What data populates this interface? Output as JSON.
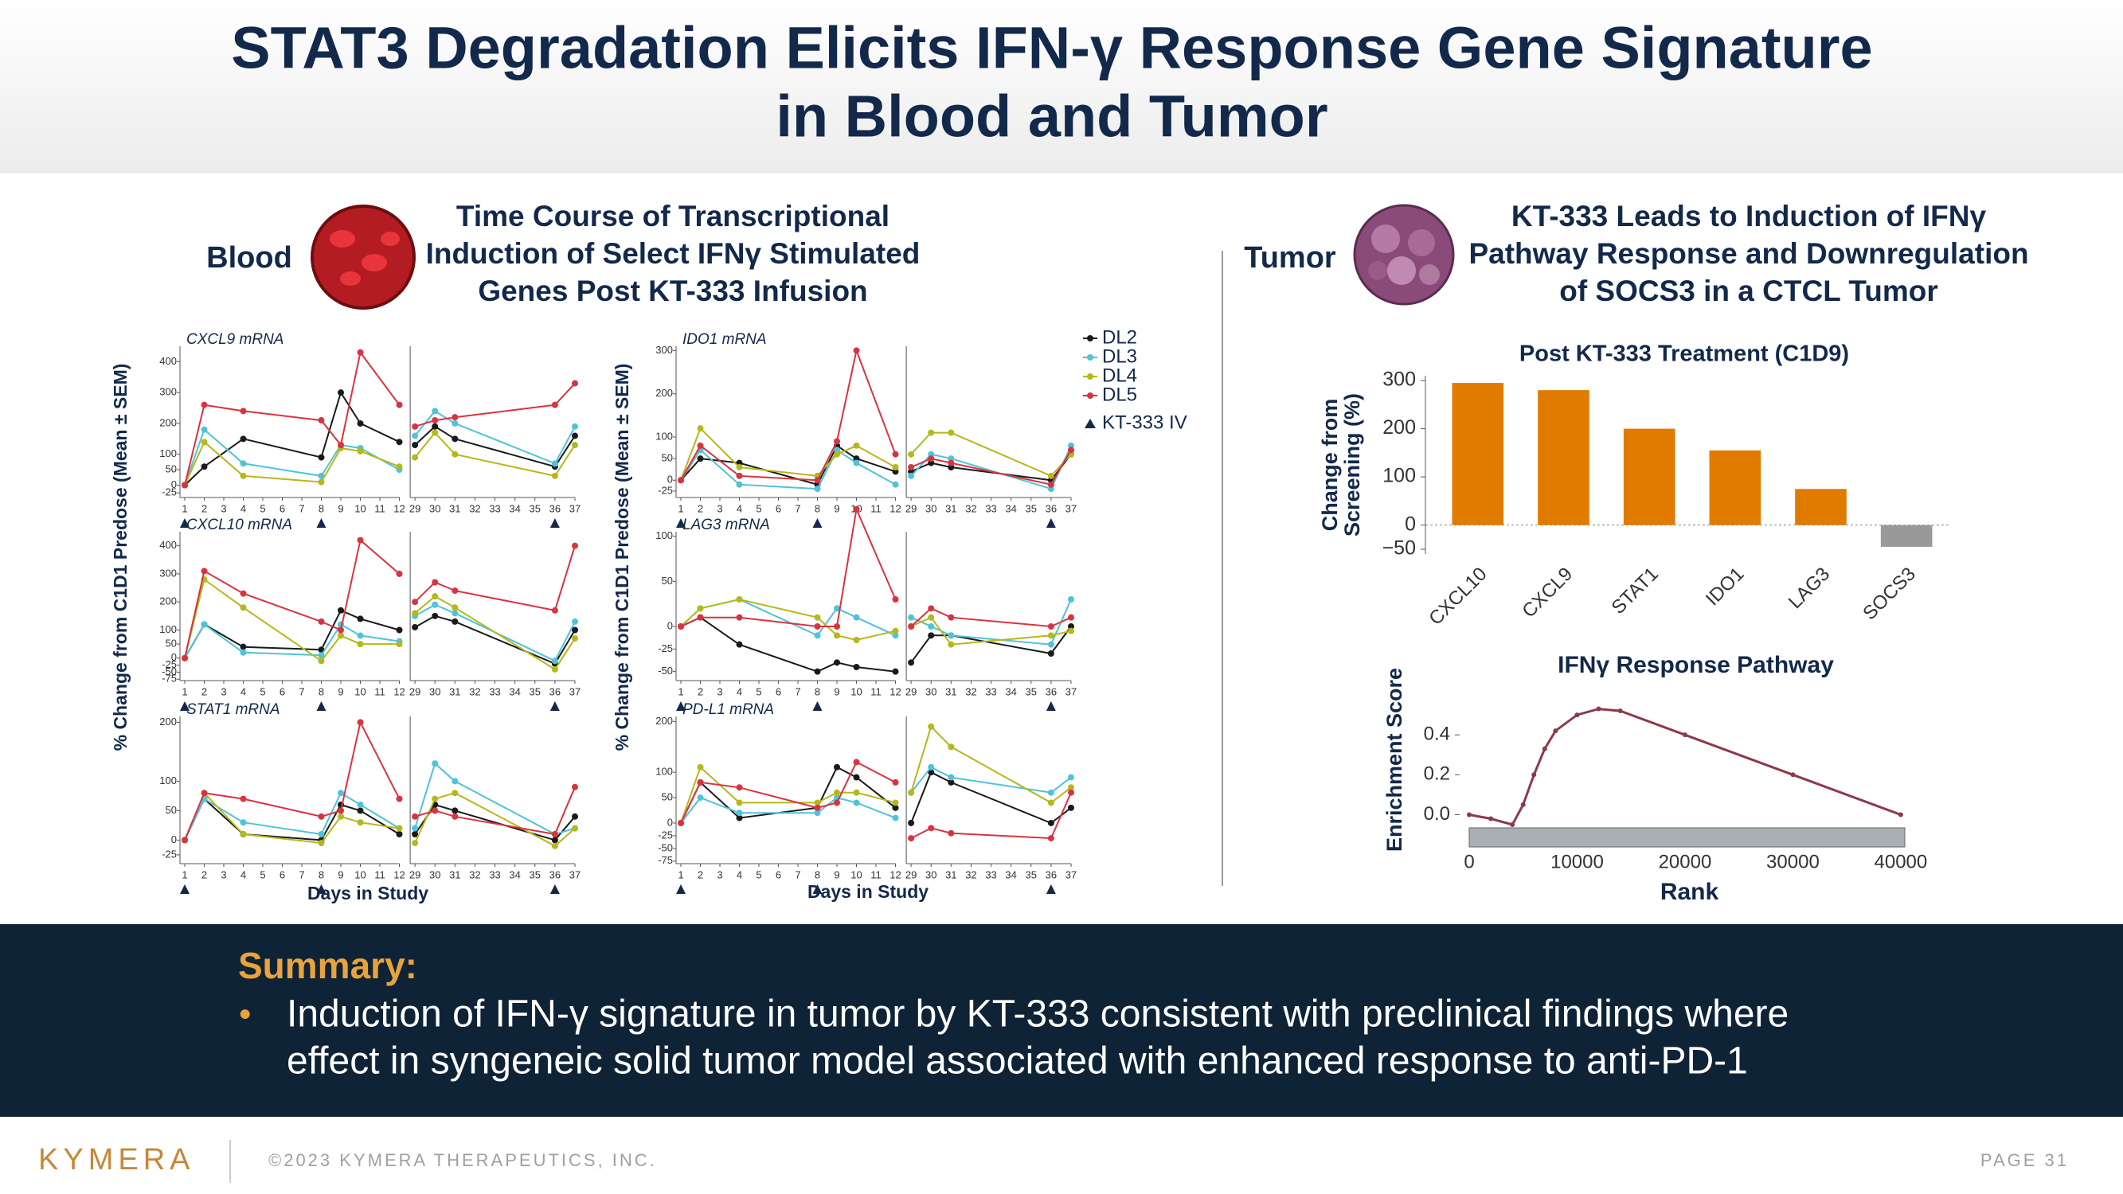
{
  "header": {
    "title": [
      "STAT3 Degradation Elicits IFN-γ Response Gene Signature",
      "in Blood and Tumor"
    ]
  },
  "blood": {
    "label": "Blood",
    "subtitle": [
      "Time Course of Transcriptional",
      "Induction of Select IFNγ Stimulated",
      "Genes Post KT-333 Infusion"
    ],
    "ylabel": "% Change from C1D1 Predose (Mean ± SEM)",
    "xlabel": "Days in Study",
    "dosing_days": [
      1,
      8,
      36
    ],
    "dosing_label": "KT-333 IV"
  },
  "tumor": {
    "label": "Tumor",
    "subtitle": [
      "KT-333 Leads to Induction of IFNγ",
      "Pathway Response and Downregulation",
      "of SOCS3 in a CTCL Tumor"
    ]
  },
  "chart_data": [
    {
      "type": "line",
      "title": "CXCL9 mRNA",
      "x": [
        1,
        2,
        4,
        8,
        9,
        10,
        12,
        29,
        30,
        31,
        36,
        37
      ],
      "xlim": [
        1,
        37
      ],
      "xbreak": [
        12,
        29
      ],
      "xticks": [
        1,
        2,
        3,
        4,
        5,
        6,
        7,
        8,
        9,
        10,
        11,
        12,
        29,
        30,
        31,
        32,
        33,
        34,
        35,
        36,
        37
      ],
      "ylim": [
        -40,
        450
      ],
      "yticks": [
        -25,
        0,
        50,
        100,
        200,
        300,
        400
      ],
      "series": [
        {
          "name": "DL2",
          "color": "#1a1a1a",
          "values": [
            0,
            60,
            150,
            90,
            300,
            200,
            140,
            130,
            190,
            150,
            60,
            160
          ]
        },
        {
          "name": "DL3",
          "color": "#4fc3d9",
          "values": [
            0,
            180,
            70,
            30,
            130,
            120,
            50,
            160,
            240,
            200,
            70,
            190
          ]
        },
        {
          "name": "DL4",
          "color": "#b5b81a",
          "values": [
            0,
            140,
            30,
            10,
            120,
            110,
            60,
            90,
            170,
            100,
            30,
            130
          ]
        },
        {
          "name": "DL5",
          "color": "#d9333f",
          "values": [
            0,
            260,
            240,
            210,
            130,
            430,
            260,
            190,
            210,
            220,
            260,
            330
          ]
        }
      ]
    },
    {
      "type": "line",
      "title": "CXCL10 mRNA",
      "x": [
        1,
        2,
        4,
        8,
        9,
        10,
        12,
        29,
        30,
        31,
        36,
        37
      ],
      "xlim": [
        1,
        37
      ],
      "xbreak": [
        12,
        29
      ],
      "xticks": [
        1,
        2,
        3,
        4,
        5,
        6,
        7,
        8,
        9,
        10,
        11,
        12,
        29,
        30,
        31,
        32,
        33,
        34,
        35,
        36,
        37
      ],
      "ylim": [
        -80,
        450
      ],
      "yticks": [
        -75,
        -50,
        -25,
        0,
        50,
        100,
        200,
        300,
        400
      ],
      "series": [
        {
          "name": "DL2",
          "color": "#1a1a1a",
          "values": [
            0,
            120,
            40,
            30,
            170,
            140,
            100,
            110,
            150,
            130,
            -20,
            100
          ]
        },
        {
          "name": "DL3",
          "color": "#4fc3d9",
          "values": [
            0,
            120,
            20,
            10,
            120,
            80,
            60,
            150,
            190,
            160,
            -10,
            130
          ]
        },
        {
          "name": "DL4",
          "color": "#b5b81a",
          "values": [
            0,
            280,
            180,
            -10,
            80,
            50,
            50,
            160,
            220,
            180,
            -40,
            70
          ]
        },
        {
          "name": "DL5",
          "color": "#d9333f",
          "values": [
            0,
            310,
            230,
            130,
            100,
            420,
            300,
            200,
            270,
            240,
            170,
            400
          ]
        }
      ]
    },
    {
      "type": "line",
      "title": "STAT1 mRNA",
      "x": [
        1,
        2,
        4,
        8,
        9,
        10,
        12,
        29,
        30,
        31,
        36,
        37
      ],
      "xlim": [
        1,
        37
      ],
      "xbreak": [
        12,
        29
      ],
      "xticks": [
        1,
        2,
        3,
        4,
        5,
        6,
        7,
        8,
        9,
        10,
        11,
        12,
        29,
        30,
        31,
        32,
        33,
        34,
        35,
        36,
        37
      ],
      "ylim": [
        -40,
        210
      ],
      "yticks": [
        -25,
        0,
        50,
        100,
        200
      ],
      "series": [
        {
          "name": "DL2",
          "color": "#1a1a1a",
          "values": [
            0,
            70,
            10,
            0,
            60,
            50,
            10,
            10,
            60,
            50,
            0,
            40
          ]
        },
        {
          "name": "DL3",
          "color": "#4fc3d9",
          "values": [
            0,
            70,
            30,
            10,
            80,
            60,
            20,
            20,
            130,
            100,
            10,
            20
          ]
        },
        {
          "name": "DL4",
          "color": "#b5b81a",
          "values": [
            0,
            80,
            10,
            -5,
            40,
            30,
            20,
            -5,
            70,
            80,
            -10,
            20
          ]
        },
        {
          "name": "DL5",
          "color": "#d9333f",
          "values": [
            0,
            80,
            70,
            40,
            50,
            200,
            70,
            40,
            50,
            40,
            10,
            90
          ]
        }
      ]
    },
    {
      "type": "line",
      "title": "IDO1 mRNA",
      "x": [
        1,
        2,
        4,
        8,
        9,
        10,
        12,
        29,
        30,
        31,
        36,
        37
      ],
      "xlim": [
        1,
        37
      ],
      "xbreak": [
        12,
        29
      ],
      "xticks": [
        1,
        2,
        3,
        4,
        5,
        6,
        7,
        8,
        9,
        10,
        11,
        12,
        29,
        30,
        31,
        32,
        33,
        34,
        35,
        36,
        37
      ],
      "ylim": [
        -40,
        310
      ],
      "yticks": [
        -25,
        0,
        50,
        100,
        200,
        300
      ],
      "series": [
        {
          "name": "DL2",
          "color": "#1a1a1a",
          "values": [
            0,
            50,
            40,
            -10,
            80,
            50,
            20,
            20,
            40,
            30,
            0,
            60
          ]
        },
        {
          "name": "DL3",
          "color": "#4fc3d9",
          "values": [
            0,
            70,
            -10,
            -20,
            70,
            40,
            -10,
            10,
            60,
            50,
            -20,
            80
          ]
        },
        {
          "name": "DL4",
          "color": "#b5b81a",
          "values": [
            0,
            120,
            30,
            10,
            60,
            80,
            30,
            60,
            110,
            110,
            10,
            60
          ]
        },
        {
          "name": "DL5",
          "color": "#d9333f",
          "values": [
            0,
            80,
            10,
            0,
            90,
            300,
            60,
            30,
            50,
            40,
            -10,
            70
          ]
        }
      ]
    },
    {
      "type": "line",
      "title": "LAG3 mRNA",
      "x": [
        1,
        2,
        4,
        8,
        9,
        10,
        12,
        29,
        30,
        31,
        36,
        37
      ],
      "xlim": [
        1,
        37
      ],
      "xbreak": [
        12,
        29
      ],
      "xticks": [
        1,
        2,
        3,
        4,
        5,
        6,
        7,
        8,
        9,
        10,
        11,
        12,
        29,
        30,
        31,
        32,
        33,
        34,
        35,
        36,
        37
      ],
      "ylim": [
        -60,
        105
      ],
      "yticks": [
        -50,
        -25,
        0,
        50,
        100
      ],
      "series": [
        {
          "name": "DL2",
          "color": "#1a1a1a",
          "values": [
            0,
            10,
            -20,
            -50,
            -40,
            -45,
            -50,
            -40,
            -10,
            -10,
            -30,
            0
          ]
        },
        {
          "name": "DL3",
          "color": "#4fc3d9",
          "values": [
            0,
            20,
            30,
            -10,
            20,
            10,
            -10,
            10,
            0,
            -10,
            -20,
            30
          ]
        },
        {
          "name": "DL4",
          "color": "#b5b81a",
          "values": [
            0,
            20,
            30,
            10,
            -10,
            -15,
            -5,
            0,
            10,
            -20,
            -10,
            -5
          ]
        },
        {
          "name": "DL5",
          "color": "#d9333f",
          "values": [
            0,
            10,
            10,
            0,
            0,
            130,
            30,
            0,
            20,
            10,
            0,
            10
          ]
        }
      ]
    },
    {
      "type": "line",
      "title": "PD-L1 mRNA",
      "x": [
        1,
        2,
        4,
        8,
        9,
        10,
        12,
        29,
        30,
        31,
        36,
        37
      ],
      "xlim": [
        1,
        37
      ],
      "xbreak": [
        12,
        29
      ],
      "xticks": [
        1,
        2,
        3,
        4,
        5,
        6,
        7,
        8,
        9,
        10,
        11,
        12,
        29,
        30,
        31,
        32,
        33,
        34,
        35,
        36,
        37
      ],
      "ylim": [
        -80,
        210
      ],
      "yticks": [
        -75,
        -50,
        -25,
        0,
        50,
        100,
        200
      ],
      "series": [
        {
          "name": "DL2",
          "color": "#1a1a1a",
          "values": [
            0,
            80,
            10,
            30,
            110,
            90,
            30,
            0,
            100,
            80,
            0,
            30
          ]
        },
        {
          "name": "DL3",
          "color": "#4fc3d9",
          "values": [
            0,
            50,
            20,
            20,
            50,
            40,
            10,
            60,
            110,
            90,
            60,
            90
          ]
        },
        {
          "name": "DL4",
          "color": "#b5b81a",
          "values": [
            0,
            110,
            40,
            40,
            60,
            60,
            40,
            60,
            190,
            150,
            40,
            70
          ]
        },
        {
          "name": "DL5",
          "color": "#d9333f",
          "values": [
            0,
            80,
            70,
            30,
            40,
            120,
            80,
            -30,
            -10,
            -20,
            -30,
            60
          ]
        }
      ]
    },
    {
      "type": "bar",
      "title": "Post KT-333 Treatment (C1D9)",
      "ylabel": [
        "Change from",
        "Screening (%)"
      ],
      "categories": [
        "CXCL10",
        "CXCL9",
        "STAT1",
        "IDO1",
        "LAG3",
        "SOCS3"
      ],
      "values": [
        295,
        280,
        200,
        155,
        75,
        -45
      ],
      "colors": [
        "#e07b00",
        "#e07b00",
        "#e07b00",
        "#e07b00",
        "#e07b00",
        "#999999"
      ],
      "ylim": [
        -60,
        310
      ],
      "yticks": [
        {
          "value": -50,
          "label": "−50"
        },
        0,
        100,
        200,
        300
      ]
    },
    {
      "type": "line",
      "title": "IFNγ Response Pathway",
      "xlabel": "Rank",
      "ylabel": "Enrichment Score",
      "x": [
        0,
        2000,
        4000,
        5000,
        6000,
        7000,
        8000,
        10000,
        12000,
        14000,
        20000,
        30000,
        40000
      ],
      "values": [
        0,
        -0.02,
        -0.05,
        0.05,
        0.2,
        0.33,
        0.42,
        0.5,
        0.53,
        0.52,
        0.4,
        0.2,
        0
      ],
      "color": "#8b3a4a",
      "xlim": [
        0,
        42000
      ],
      "ylim": [
        -0.05,
        0.6
      ],
      "xticks": [
        0,
        10000,
        20000,
        30000,
        40000
      ],
      "yticks": [
        {
          "value": 0,
          "label": "0.0"
        },
        0.2,
        0.4
      ]
    }
  ],
  "summary": {
    "heading": "Summary:",
    "bullet": "•",
    "lines": [
      "Induction of IFN-γ signature in tumor by KT-333 consistent with preclinical findings where",
      "effect in syngeneic solid tumor model associated with enhanced response to anti-PD-1"
    ]
  },
  "footer": {
    "logo": "KYMERA",
    "copyright": "©2023 KYMERA THERAPEUTICS, INC.",
    "page": "PAGE 31"
  }
}
